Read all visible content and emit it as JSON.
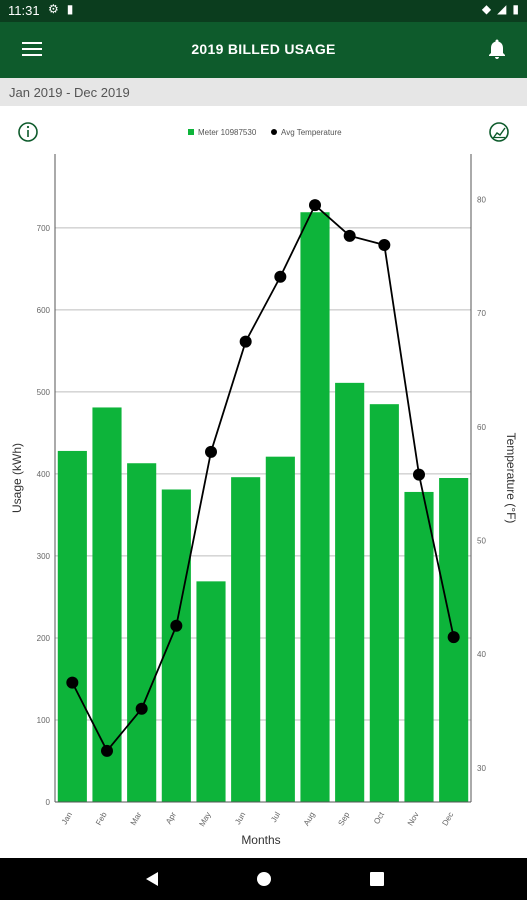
{
  "status": {
    "time": "11:31"
  },
  "appbar": {
    "title": "2019 BILLED USAGE"
  },
  "range_label": "Jan 2019 - Dec 2019",
  "colors": {
    "bar": "#0db43a",
    "line": "#000000",
    "appbar": "#0e5b2c",
    "statusbar": "#0b3d1e"
  },
  "icons": [
    "menu-icon",
    "bell-icon",
    "info-icon",
    "chart-toggle-icon",
    "back-icon",
    "home-icon",
    "recents-icon"
  ],
  "chart_data": {
    "type": "bar",
    "categories": [
      "Jan",
      "Feb",
      "Mar",
      "Apr",
      "May",
      "Jun",
      "Jul",
      "Aug",
      "Sep",
      "Oct",
      "Nov",
      "Dec"
    ],
    "series": [
      {
        "name": "Meter 10987530",
        "type": "bar",
        "axis": "left",
        "values": [
          428,
          481,
          413,
          381,
          269,
          396,
          421,
          719,
          511,
          485,
          378,
          395
        ]
      },
      {
        "name": "Avg Temperature",
        "type": "line",
        "axis": "right",
        "values": [
          37.5,
          31.5,
          35.2,
          42.5,
          57.8,
          67.5,
          73.2,
          79.5,
          76.8,
          76.0,
          55.8,
          41.5
        ]
      }
    ],
    "xlabel": "Months",
    "ylabel_left": "Usage (kWh)",
    "ylabel_right": "Temperature (°F)",
    "ylim_left": [
      0,
      790
    ],
    "ylim_right": [
      27,
      84
    ],
    "yticks_left": [
      0,
      100,
      200,
      300,
      400,
      500,
      600,
      700
    ],
    "yticks_right": [
      30,
      40,
      50,
      60,
      70,
      80
    ],
    "legend": [
      "Meter 10987530",
      "Avg Temperature"
    ],
    "legend_position": "top-center",
    "grid": true
  }
}
